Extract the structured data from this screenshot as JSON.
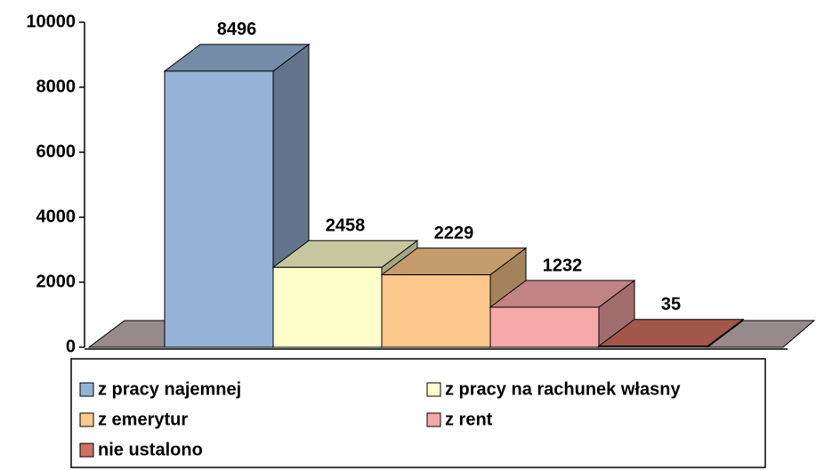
{
  "chart_data": {
    "type": "bar3d",
    "categories": [
      "z pracy najemnej",
      "z pracy na rachunek własny",
      "z emerytur",
      "z rent",
      "nie ustalono"
    ],
    "values": [
      8496,
      2458,
      2229,
      1232,
      35
    ],
    "colors": [
      "#95b3d7",
      "#ffffcc",
      "#fcc88c",
      "#f7a8a8",
      "#d07060"
    ],
    "ylim": [
      0,
      10000
    ],
    "yticks": [
      0,
      2000,
      4000,
      6000,
      8000,
      10000
    ],
    "legend": "bottom"
  }
}
